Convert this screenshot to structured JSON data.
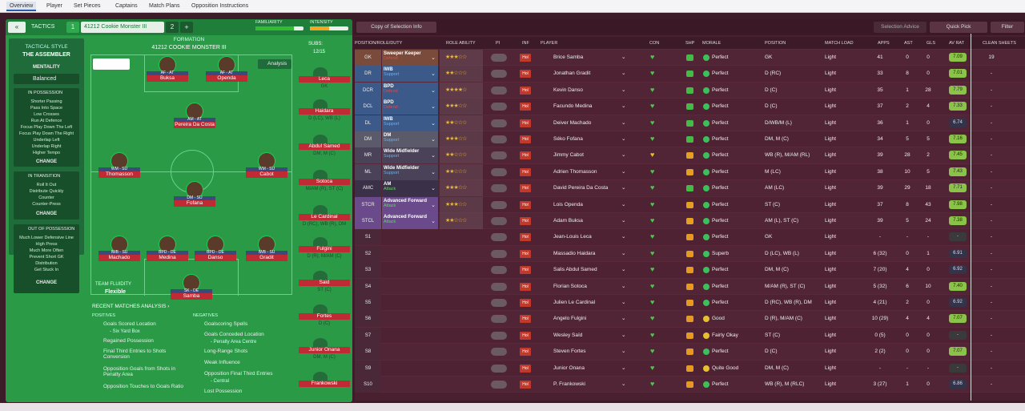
{
  "topbar": {
    "tabs": [
      "Overview",
      "Player",
      "Set Pieces",
      "Captains",
      "Match Plans",
      "Opposition Instructions"
    ]
  },
  "left": {
    "back": "«",
    "tactics_label": "TACTICS",
    "tactic1_num": "1",
    "tactic_name": "41212 Cookie Monster III",
    "tactic2_num": "2",
    "add": "+",
    "familiarity": "FAMILIARITY",
    "intensity": "INTENSITY",
    "tactical_style": "TACTICAL STYLE",
    "style_name": "THE ASSEMBLER",
    "mentality_label": "MENTALITY",
    "mentality": "Balanced",
    "in_possession": "IN POSSESSION",
    "in_possession_items": [
      "Shorter Passing",
      "Pass Into Space",
      "Low Crosses",
      "Run At Defence",
      "Focus Play Down The Left",
      "Focus Play Down The Right",
      "Underlap Left",
      "Underlap Right",
      "Higher Tempo"
    ],
    "change": "CHANGE",
    "in_transition": "IN TRANSITION",
    "in_transition_items": [
      "Roll It Out",
      "Distribute Quickly",
      "Counter",
      "Counter-Press"
    ],
    "out_possession": "OUT OF POSSESSION",
    "out_possession_items": [
      "Much Lower Defensive Line",
      "High Press",
      "Much More Often",
      "Prevent Short GK",
      "Distribution",
      "Get Stuck In"
    ],
    "formation_label": "FORMATION",
    "formation_name": "41212 COOKIE MONSTER III",
    "subs_label": "SUBS:",
    "subs_count": "12/15",
    "analysis": "Analysis",
    "team_fluidity": "TEAM FLUIDITY",
    "fluidity": "Flexible",
    "players": [
      {
        "role": "AF - AT",
        "name": "Buksa"
      },
      {
        "role": "AF - AT",
        "name": "Openda"
      },
      {
        "role": "AM - AT",
        "name": "Pereira Da Costa"
      },
      {
        "role": "WM - SU",
        "name": "Thomasson"
      },
      {
        "role": "WM - SU",
        "name": "Cabot"
      },
      {
        "role": "DM - SU",
        "name": "Fofana"
      },
      {
        "role": "IWB - SU",
        "name": "Machado"
      },
      {
        "role": "BPD - DE",
        "name": "Medina"
      },
      {
        "role": "BPD - DE",
        "name": "Danso"
      },
      {
        "role": "IWB - SU",
        "name": "Gradit"
      },
      {
        "role": "SK - DE",
        "name": "Samba"
      }
    ],
    "subs": [
      {
        "name": "Leca",
        "pos": "GK"
      },
      {
        "name": "Haidara",
        "pos": "D (LC), WB (L)"
      },
      {
        "name": "Abdul Samed",
        "pos": "DM, M (C)"
      },
      {
        "name": "Sotoca",
        "pos": "M/AM (R), ST (C)"
      },
      {
        "name": "Le Cardinal",
        "pos": "D (RC), WB (R), DM"
      },
      {
        "name": "Fulgini",
        "pos": "D (R), M/AM (C)"
      },
      {
        "name": "Said",
        "pos": "ST (C)"
      },
      {
        "name": "Fortes",
        "pos": "D (C)"
      },
      {
        "name": "Junior Onana",
        "pos": "DM, M (C)"
      },
      {
        "name": "Frankowski",
        "pos": ""
      }
    ],
    "recent": "RECENT MATCHES ANALYSIS ›",
    "positives": "POSITIVES",
    "negatives": "NEGATIVES",
    "pos_items": [
      "Goals Scored Location",
      "- Six Yard Box",
      "Regained Possession",
      "Final Third Entries to Shots Conversion",
      "Opposition Goals from Shots in Penalty Area",
      "Opposition Touches to Goals Ratio"
    ],
    "neg_items": [
      "Goalscoring Spells",
      "Goals Conceded Location",
      "- Penalty Area Centre",
      "Long-Range Shots",
      "Weak Influence",
      "Opposition Final Third Entries",
      "- Central",
      "Lost Possession"
    ]
  },
  "right": {
    "copy": "Copy of Selection Info",
    "advice": "Selection Advice",
    "quick": "Quick Pick",
    "filter": "Filter",
    "headers": [
      "POSITION/ROLE/DUTY",
      "ROLE ABILITY",
      "PI",
      "INF",
      "PLAYER",
      "CON",
      "SHP",
      "MORALE",
      "POSITION",
      "MATCH LOAD",
      "APPS",
      "AST",
      "GLS",
      "AV RAT",
      "CLEAN SHEETS"
    ],
    "rows": [
      {
        "pos": "GK",
        "role": "Sweeper Keeper",
        "duty": "Defend",
        "stars": "★★★☆☆",
        "name": "Brice Samba",
        "morale": "Perfect",
        "position": "GK",
        "load": "Light",
        "apps": "41",
        "ast": "0",
        "gls": "0",
        "rat": "7.09",
        "cs": "19",
        "sel": true
      },
      {
        "pos": "DR",
        "role": "IWB",
        "duty": "Support",
        "stars": "★★☆☆☆",
        "name": "Jonathan Gradit",
        "morale": "Perfect",
        "position": "D (RC)",
        "load": "Light",
        "apps": "33",
        "ast": "8",
        "gls": "0",
        "rat": "7.01",
        "cs": "-",
        "sel": true
      },
      {
        "pos": "DCR",
        "role": "BPD",
        "duty": "Defend",
        "stars": "★★★★☆",
        "name": "Kevin Danso",
        "morale": "Perfect",
        "position": "D (C)",
        "load": "Light",
        "apps": "35",
        "ast": "1",
        "gls": "28",
        "rat": "7.79",
        "cs": "-",
        "sel": true
      },
      {
        "pos": "DCL",
        "role": "BPD",
        "duty": "Defend",
        "stars": "★★★☆☆",
        "name": "Facundo Medina",
        "morale": "Perfect",
        "position": "D (C)",
        "load": "Light",
        "apps": "37",
        "ast": "2",
        "gls": "4",
        "rat": "7.33",
        "cs": "-",
        "sel": true
      },
      {
        "pos": "DL",
        "role": "IWB",
        "duty": "Support",
        "stars": "★★☆☆☆",
        "name": "Deiver Machado",
        "morale": "Perfect",
        "position": "D/WB/M (L)",
        "load": "Light",
        "apps": "36",
        "ast": "1",
        "gls": "0",
        "rat": "6.74",
        "cs": "-",
        "sel": true
      },
      {
        "pos": "DM",
        "role": "DM",
        "duty": "Support",
        "stars": "★★★☆☆",
        "name": "Séko Fofana",
        "morale": "Perfect",
        "position": "DM, M (C)",
        "load": "Light",
        "apps": "34",
        "ast": "5",
        "gls": "5",
        "rat": "7.16",
        "cs": "-",
        "sel": true
      },
      {
        "pos": "MR",
        "role": "Wide Midfielder",
        "duty": "Support",
        "stars": "★★☆☆☆",
        "name": "Jimmy Cabot",
        "morale": "Perfect",
        "position": "WB (R), M/AM (RL)",
        "load": "Light",
        "apps": "39",
        "ast": "28",
        "gls": "2",
        "rat": "7.45",
        "cs": "-",
        "sel": true
      },
      {
        "pos": "ML",
        "role": "Wide Midfielder",
        "duty": "Support",
        "stars": "★★☆☆☆",
        "name": "Adrien Thomasson",
        "morale": "Perfect",
        "position": "M (LC)",
        "load": "Light",
        "apps": "38",
        "ast": "10",
        "gls": "5",
        "rat": "7.43",
        "cs": "-",
        "sel": true
      },
      {
        "pos": "AMC",
        "role": "AM",
        "duty": "Attack",
        "stars": "★★★☆☆",
        "name": "David Pereira Da Costa",
        "morale": "Perfect",
        "position": "AM (LC)",
        "load": "Light",
        "apps": "39",
        "ast": "29",
        "gls": "18",
        "rat": "7.71",
        "cs": "-",
        "sel": true
      },
      {
        "pos": "STCR",
        "role": "Advanced Forward",
        "duty": "Attack",
        "stars": "★★★☆☆",
        "name": "Lois Openda",
        "morale": "Perfect",
        "position": "ST (C)",
        "load": "Light",
        "apps": "37",
        "ast": "8",
        "gls": "43",
        "rat": "7.98",
        "cs": "-",
        "sel": true
      },
      {
        "pos": "STCL",
        "role": "Advanced Forward",
        "duty": "Attack",
        "stars": "★★☆☆☆",
        "name": "Adam Buksa",
        "morale": "Perfect",
        "position": "AM (L), ST (C)",
        "load": "Light",
        "apps": "39",
        "ast": "5",
        "gls": "24",
        "rat": "7.38",
        "cs": "-",
        "sel": true
      },
      {
        "pos": "S1",
        "role": "",
        "duty": "",
        "stars": "",
        "name": "Jean-Louis Leca",
        "morale": "Perfect",
        "position": "GK",
        "load": "Light",
        "apps": "-",
        "ast": "-",
        "gls": "-",
        "rat": "-",
        "cs": "-",
        "sel": false
      },
      {
        "pos": "S2",
        "role": "",
        "duty": "",
        "stars": "",
        "name": "Massadio Haidara",
        "morale": "Superb",
        "position": "D (LC), WB (L)",
        "load": "Light",
        "apps": "6 (32)",
        "ast": "0",
        "gls": "1",
        "rat": "6.91",
        "cs": "-",
        "sel": false
      },
      {
        "pos": "S3",
        "role": "",
        "duty": "",
        "stars": "",
        "name": "Salis Abdul Samed",
        "morale": "Perfect",
        "position": "DM, M (C)",
        "load": "Light",
        "apps": "7 (20)",
        "ast": "4",
        "gls": "0",
        "rat": "6.92",
        "cs": "-",
        "sel": false
      },
      {
        "pos": "S4",
        "role": "",
        "duty": "",
        "stars": "",
        "name": "Florian Sotoca",
        "morale": "Perfect",
        "position": "M/AM (R), ST (C)",
        "load": "Light",
        "apps": "5 (32)",
        "ast": "6",
        "gls": "10",
        "rat": "7.40",
        "cs": "-",
        "sel": false
      },
      {
        "pos": "S5",
        "role": "",
        "duty": "",
        "stars": "",
        "name": "Julien Le Cardinal",
        "morale": "Perfect",
        "position": "D (RC), WB (R), DM",
        "load": "Light",
        "apps": "4 (21)",
        "ast": "2",
        "gls": "0",
        "rat": "6.92",
        "cs": "-",
        "sel": false
      },
      {
        "pos": "S6",
        "role": "",
        "duty": "",
        "stars": "",
        "name": "Angelo Fulgini",
        "morale": "Good",
        "position": "D (R), M/AM (C)",
        "load": "Light",
        "apps": "10 (29)",
        "ast": "4",
        "gls": "4",
        "rat": "7.07",
        "cs": "-",
        "sel": false
      },
      {
        "pos": "S7",
        "role": "",
        "duty": "",
        "stars": "",
        "name": "Wesley Saïd",
        "morale": "Fairly Okay",
        "position": "ST (C)",
        "load": "Light",
        "apps": "0 (5)",
        "ast": "0",
        "gls": "0",
        "rat": "-",
        "cs": "-",
        "sel": false
      },
      {
        "pos": "S8",
        "role": "",
        "duty": "",
        "stars": "",
        "name": "Steven Fortes",
        "morale": "Perfect",
        "position": "D (C)",
        "load": "Light",
        "apps": "2 (2)",
        "ast": "0",
        "gls": "0",
        "rat": "7.07",
        "cs": "-",
        "sel": false
      },
      {
        "pos": "S9",
        "role": "",
        "duty": "",
        "stars": "",
        "name": "Junior Onana",
        "morale": "Quite Good",
        "position": "DM, M (C)",
        "load": "Light",
        "apps": "-",
        "ast": "-",
        "gls": "-",
        "rat": "-",
        "cs": "-",
        "sel": false
      },
      {
        "pos": "S10",
        "role": "",
        "duty": "",
        "stars": "",
        "name": "P. Frankowski",
        "morale": "Perfect",
        "position": "WB (R), M (RLC)",
        "load": "Light",
        "apps": "3 (27)",
        "ast": "1",
        "gls": "0",
        "rat": "6.86",
        "cs": "-",
        "sel": false
      }
    ]
  },
  "colors": {
    "pitch": "#2a9a47",
    "panel_bg": "#4a1f2f",
    "accent_blue": "#2a5aa8",
    "rating_green": "#8bc34a"
  }
}
